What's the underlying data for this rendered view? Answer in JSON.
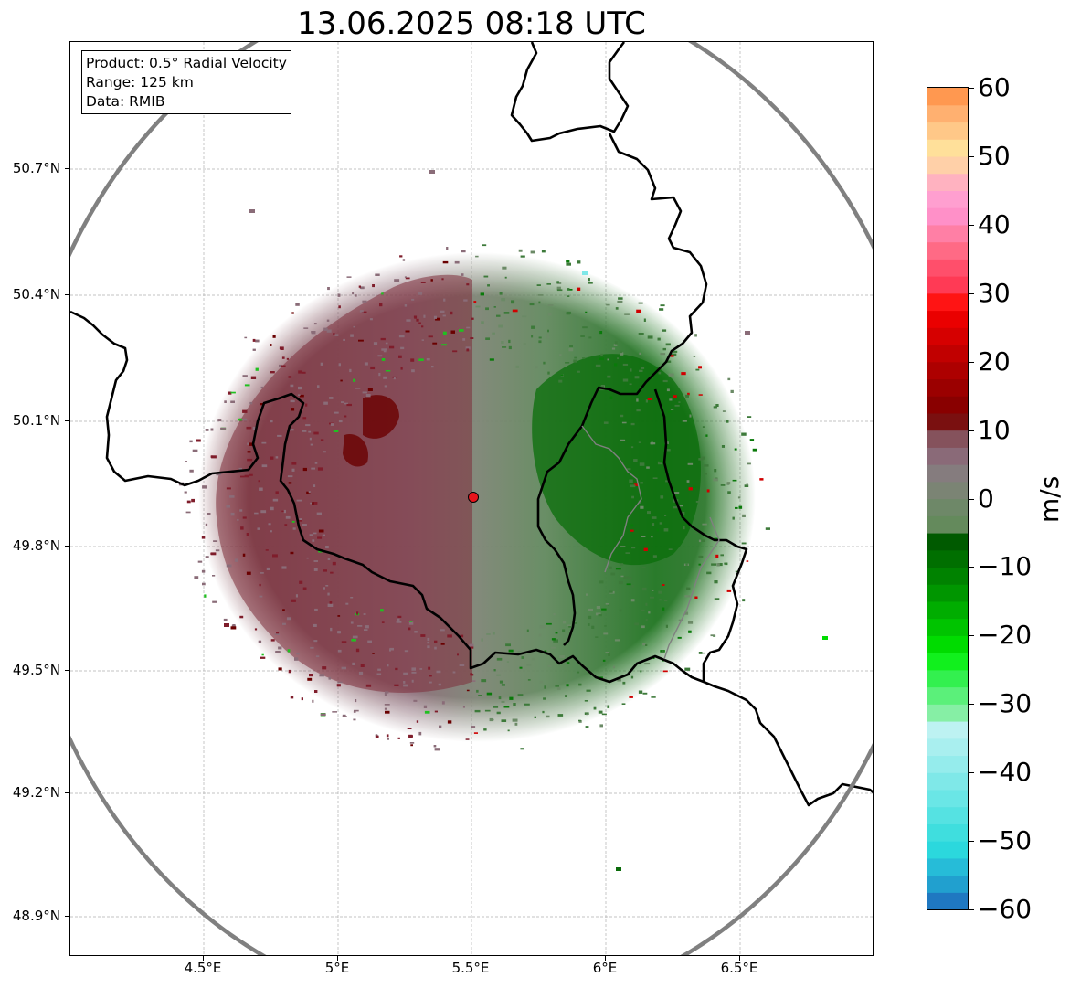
{
  "title": "13.06.2025 08:18 UTC",
  "info_box": {
    "product": "Product: 0.5° Radial Velocity",
    "range": "Range: 125 km",
    "data": "Data: RMIB"
  },
  "axes": {
    "x_ticks": [
      "4.5°E",
      "5°E",
      "5.5°E",
      "6°E",
      "6.5°E"
    ],
    "x_values": [
      4.5,
      5.0,
      5.5,
      6.0,
      6.5
    ],
    "y_ticks": [
      "50.7°N",
      "50.4°N",
      "50.1°N",
      "49.8°N",
      "49.5°N",
      "49.2°N",
      "48.9°N"
    ],
    "y_values": [
      50.7,
      50.4,
      50.1,
      49.8,
      49.5,
      49.2,
      48.9
    ],
    "lon_range": [
      4.0,
      7.0
    ],
    "lat_range": [
      48.8,
      51.0
    ],
    "grid": true
  },
  "radar": {
    "lon": 5.505,
    "lat": 49.915,
    "range_km": 125,
    "marker_color": "#e8141c",
    "range_ring_color": "#808080"
  },
  "colorbar": {
    "unit": "m/s",
    "min": -60,
    "max": 60,
    "tick_labels": [
      "60",
      "50",
      "40",
      "30",
      "20",
      "10",
      "0",
      "−10",
      "−20",
      "−30",
      "−40",
      "−50",
      "−60"
    ],
    "tick_values": [
      60,
      50,
      40,
      30,
      20,
      10,
      0,
      -10,
      -20,
      -30,
      -40,
      -50,
      -60
    ],
    "colors": [
      "#1f78c1",
      "#21a0cf",
      "#26bcd8",
      "#2bd8dd",
      "#3fdede",
      "#55e2e2",
      "#6ae6e6",
      "#7fe8e8",
      "#95ecec",
      "#a9efef",
      "#bdf2f2",
      "#86efa5",
      "#5bf07a",
      "#33f04f",
      "#11f01d",
      "#00dc00",
      "#00c400",
      "#00ad00",
      "#009600",
      "#008200",
      "#006f00",
      "#005a00",
      "#648a5c",
      "#6e8868",
      "#7b8474",
      "#857c7e",
      "#8a6a78",
      "#85525c",
      "#7a1010",
      "#890000",
      "#9b0000",
      "#ad0000",
      "#c10000",
      "#d60000",
      "#ea0000",
      "#ff1414",
      "#ff3a55",
      "#ff4f6b",
      "#ff6a85",
      "#ff7fa5",
      "#ff90c8",
      "#ff9fd0",
      "#ffb2c0",
      "#ffd0a8",
      "#ffe09a",
      "#ffc888",
      "#ffb070",
      "#ff9850"
    ]
  },
  "colors": {
    "outbound_red": "#7f1d2b",
    "inbound_green": "#0a6b0a",
    "near_zero_mauve": "#8a6c78",
    "near_zero_sage": "#6b8a66",
    "border": "#000000",
    "grid": "#b0b0b0"
  }
}
